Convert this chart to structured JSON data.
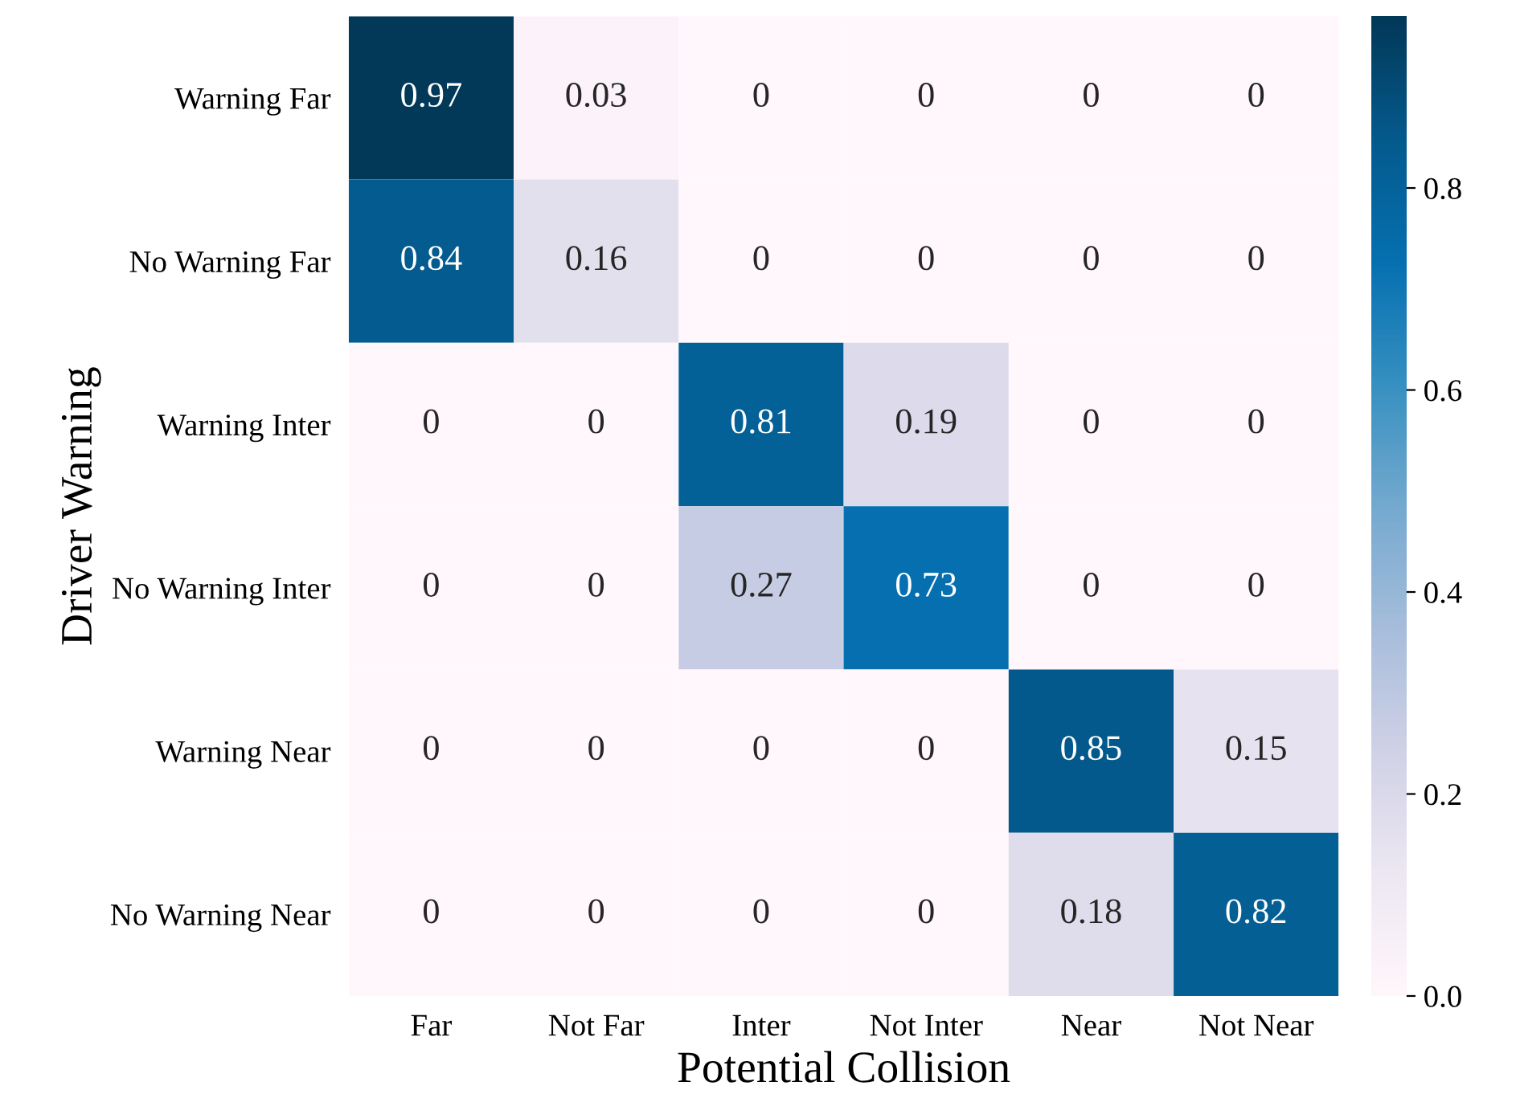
{
  "chart_data": {
    "type": "heatmap",
    "xlabel": "Potential Collision",
    "ylabel": "Driver Warning",
    "categories": [
      "Far",
      "Not Far",
      "Inter",
      "Not Inter",
      "Near",
      "Not Near"
    ],
    "y_categories": [
      "Warning Far",
      "No Warning Far",
      "Warning Inter",
      "No Warning Inter",
      "Warning Near",
      "No Warning Near"
    ],
    "cells": [
      [
        0.97,
        0.03,
        0,
        0,
        0,
        0
      ],
      [
        0.84,
        0.16,
        0,
        0,
        0,
        0
      ],
      [
        0,
        0,
        0.81,
        0.19,
        0,
        0
      ],
      [
        0,
        0,
        0.27,
        0.73,
        0,
        0
      ],
      [
        0,
        0,
        0,
        0,
        0.85,
        0.15
      ],
      [
        0,
        0,
        0,
        0,
        0.18,
        0.82
      ]
    ],
    "data_labels": true,
    "clim": [
      0,
      0.97
    ],
    "cticks": [
      {
        "value": 0,
        "label": "0.0"
      },
      0.2,
      0.4,
      0.6,
      0.8
    ]
  }
}
